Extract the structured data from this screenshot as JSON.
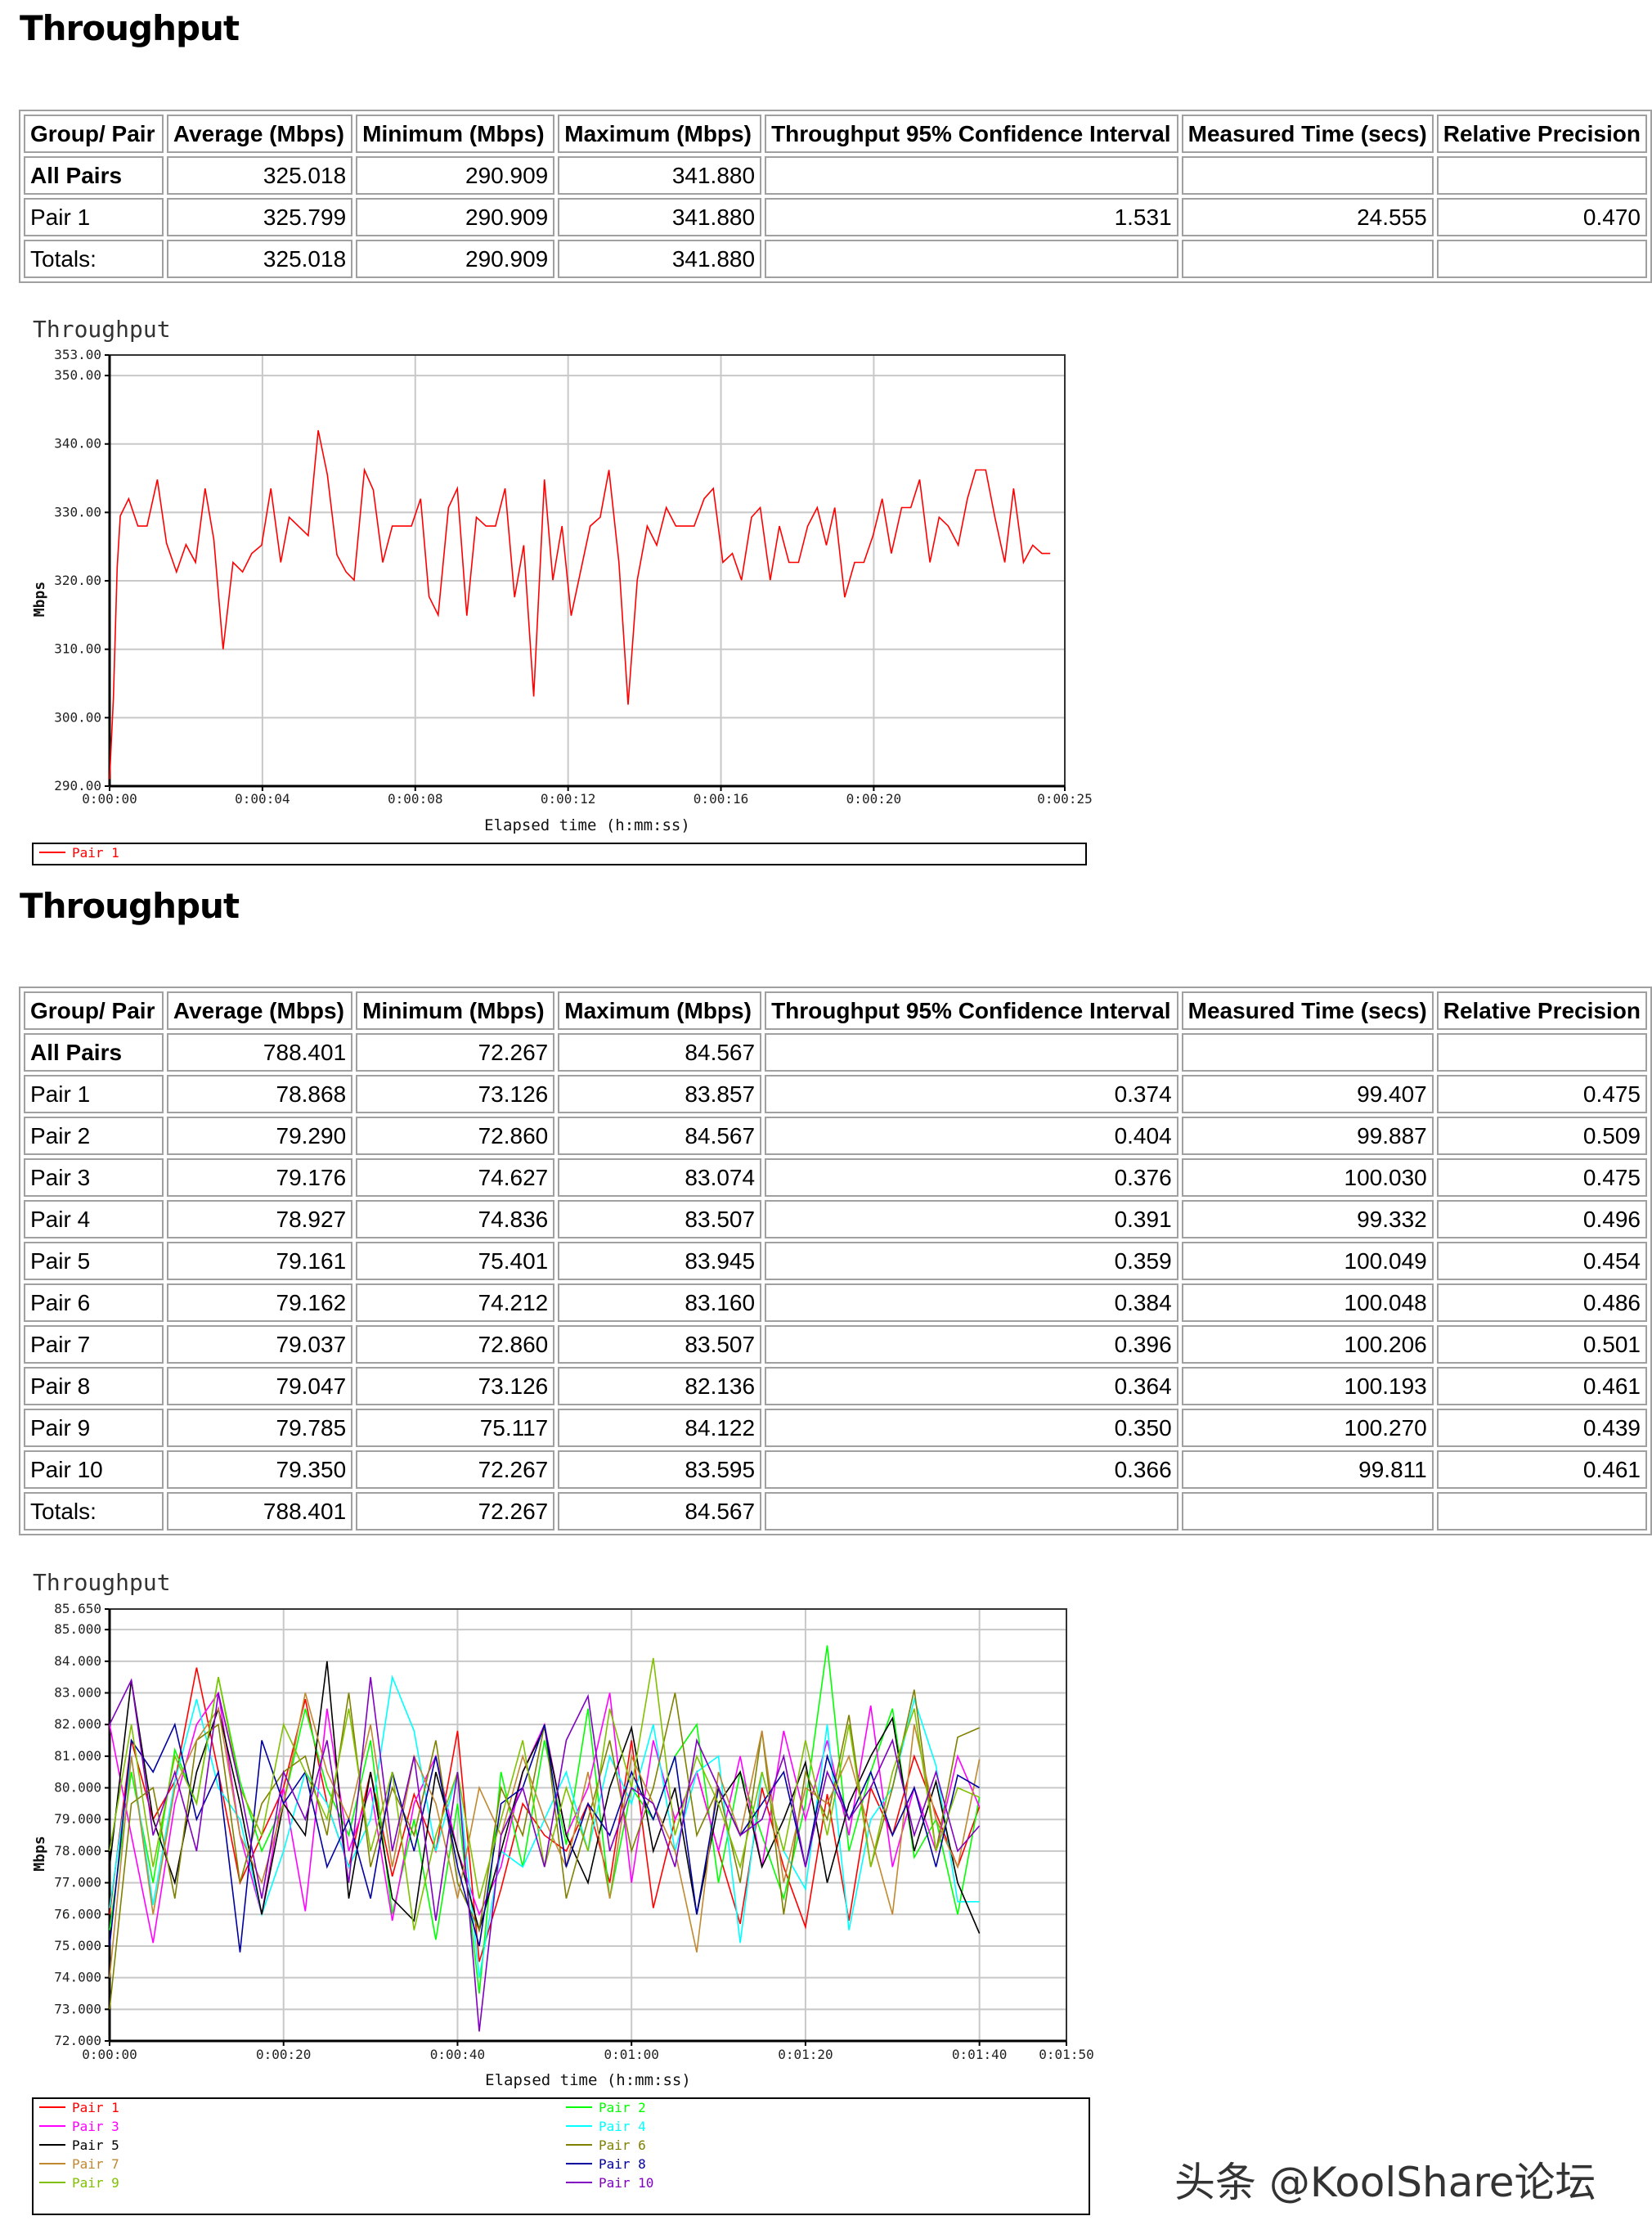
{
  "sections": [
    {
      "title": "Throughput",
      "table": {
        "headers": [
          "Group/ Pair",
          "Average (Mbps)",
          "Minimum (Mbps)",
          "Maximum (Mbps)",
          "Throughput 95% Confidence Interval",
          "Measured Time (secs)",
          "Relative Precision"
        ],
        "rows": [
          [
            "All Pairs",
            "325.018",
            "290.909",
            "341.880",
            "",
            "",
            ""
          ],
          [
            "Pair 1",
            "325.799",
            "290.909",
            "341.880",
            "1.531",
            "24.555",
            "0.470"
          ],
          [
            "Totals:",
            "325.018",
            "290.909",
            "341.880",
            "",
            "",
            ""
          ]
        ]
      }
    },
    {
      "title": "Throughput",
      "table": {
        "headers": [
          "Group/ Pair",
          "Average (Mbps)",
          "Minimum (Mbps)",
          "Maximum (Mbps)",
          "Throughput 95% Confidence Interval",
          "Measured Time (secs)",
          "Relative Precision"
        ],
        "rows": [
          [
            "All Pairs",
            "788.401",
            "72.267",
            "84.567",
            "",
            "",
            ""
          ],
          [
            "Pair 1",
            "78.868",
            "73.126",
            "83.857",
            "0.374",
            "99.407",
            "0.475"
          ],
          [
            "Pair 2",
            "79.290",
            "72.860",
            "84.567",
            "0.404",
            "99.887",
            "0.509"
          ],
          [
            "Pair 3",
            "79.176",
            "74.627",
            "83.074",
            "0.376",
            "100.030",
            "0.475"
          ],
          [
            "Pair 4",
            "78.927",
            "74.836",
            "83.507",
            "0.391",
            "99.332",
            "0.496"
          ],
          [
            "Pair 5",
            "79.161",
            "75.401",
            "83.945",
            "0.359",
            "100.049",
            "0.454"
          ],
          [
            "Pair 6",
            "79.162",
            "74.212",
            "83.160",
            "0.384",
            "100.048",
            "0.486"
          ],
          [
            "Pair 7",
            "79.037",
            "72.860",
            "83.507",
            "0.396",
            "100.206",
            "0.501"
          ],
          [
            "Pair 8",
            "79.047",
            "73.126",
            "82.136",
            "0.364",
            "100.193",
            "0.461"
          ],
          [
            "Pair 9",
            "79.785",
            "75.117",
            "84.122",
            "0.350",
            "100.270",
            "0.439"
          ],
          [
            "Pair 10",
            "79.350",
            "72.267",
            "83.595",
            "0.366",
            "99.811",
            "0.461"
          ],
          [
            "Totals:",
            "788.401",
            "72.267",
            "84.567",
            "",
            "",
            ""
          ]
        ]
      }
    }
  ],
  "chart_data": [
    {
      "type": "line",
      "title": "Throughput",
      "xlabel": "Elapsed time (h:mm:ss)",
      "ylabel": "Mbps",
      "xlim": [
        0,
        25
      ],
      "ylim": [
        290,
        353
      ],
      "grid": true,
      "legend_placement": "bottom",
      "x_ticks": [
        0,
        4,
        8,
        12,
        16,
        20,
        25
      ],
      "x_tick_labels": [
        "0:00:00",
        "0:00:04",
        "0:00:08",
        "0:00:12",
        "0:00:16",
        "0:00:20",
        "0:00:25"
      ],
      "y_ticks": [
        290,
        300,
        310,
        320,
        330,
        340,
        350,
        353
      ],
      "y_tick_labels": [
        "290.00",
        "300.00",
        "310.00",
        "320.00",
        "330.00",
        "340.00",
        "350.00",
        "353.00"
      ],
      "series": [
        {
          "name": "Pair 1",
          "color": "#ff0000",
          "x": [
            0,
            0.1,
            0.2,
            0.28,
            0.5,
            0.74,
            0.98,
            1.25,
            1.49,
            1.75,
            2.0,
            2.25,
            2.5,
            2.73,
            2.97,
            3.23,
            3.48,
            3.72,
            3.98,
            4.22,
            4.48,
            4.7,
            5.2,
            5.46,
            5.7,
            5.95,
            6.19,
            6.4,
            6.67,
            6.9,
            7.15,
            7.4,
            7.9,
            8.14,
            8.36,
            8.6,
            8.87,
            9.1,
            9.35,
            9.6,
            9.85,
            10.1,
            10.35,
            10.6,
            10.84,
            11.1,
            11.38,
            11.6,
            11.84,
            12.08,
            12.58,
            12.84,
            13.07,
            13.33,
            13.57,
            13.81,
            14.07,
            14.32,
            14.57,
            14.82,
            15.3,
            15.56,
            15.8,
            16.05,
            16.3,
            16.54,
            16.8,
            17.03,
            17.29,
            17.53,
            17.78,
            18.03,
            18.27,
            18.52,
            18.76,
            18.98,
            19.24,
            19.5,
            19.74,
            19.98,
            20.22,
            20.46,
            20.73,
            20.97,
            21.2,
            21.47,
            21.71,
            21.95,
            22.21,
            22.45,
            22.67,
            22.93,
            23.17,
            23.43,
            23.66,
            23.92,
            24.16,
            24.4,
            24.62
          ],
          "y": [
            291,
            303,
            322,
            329.5,
            332,
            328,
            328,
            334.8,
            325.5,
            321.3,
            325.3,
            322.7,
            333.5,
            326,
            310,
            322.7,
            321.3,
            324,
            325.2,
            333.5,
            322.7,
            329.3,
            326.6,
            342,
            335.5,
            323.8,
            321.3,
            320.1,
            336.2,
            333.3,
            322.7,
            328,
            328,
            332,
            317.7,
            315,
            330.7,
            333.5,
            314.9,
            329.3,
            328,
            328,
            333.5,
            317.6,
            325.2,
            303.1,
            334.8,
            320.1,
            328,
            314.9,
            328,
            329.3,
            336.2,
            322.7,
            301.9,
            320.1,
            328,
            325.2,
            330.7,
            328,
            328,
            332,
            333.5,
            322.7,
            324,
            320.1,
            329.3,
            330.7,
            320.1,
            328,
            322.7,
            322.7,
            328,
            330.7,
            325.2,
            330.7,
            317.6,
            322.7,
            322.7,
            326.6,
            332,
            324,
            330.7,
            330.7,
            334.8,
            322.7,
            329.3,
            328,
            325.2,
            332,
            336.2,
            336.2,
            329.3,
            322.7,
            333.5,
            322.7,
            325.2,
            324,
            324
          ]
        }
      ]
    },
    {
      "type": "line",
      "title": "Throughput",
      "xlabel": "Elapsed time (h:mm:ss)",
      "ylabel": "Mbps",
      "xlim": [
        0,
        110
      ],
      "ylim": [
        72,
        85.65
      ],
      "grid": true,
      "legend_placement": "bottom",
      "x_ticks": [
        0,
        20,
        40,
        60,
        80,
        100,
        110
      ],
      "x_tick_labels": [
        "0:00:00",
        "0:00:20",
        "0:00:40",
        "0:01:00",
        "0:01:20",
        "0:01:40",
        "0:01:50"
      ],
      "y_ticks": [
        72,
        73,
        74,
        75,
        76,
        77,
        78,
        79,
        80,
        81,
        82,
        83,
        84,
        85,
        85.65
      ],
      "y_tick_labels": [
        "72.000",
        "73.000",
        "74.000",
        "75.000",
        "76.000",
        "77.000",
        "78.000",
        "79.000",
        "80.000",
        "81.000",
        "82.000",
        "83.000",
        "84.000",
        "85.000",
        "85.650"
      ],
      "x": [
        0,
        2.5,
        5,
        7.5,
        10,
        12.5,
        15,
        17.5,
        20,
        22.5,
        25,
        27.5,
        30,
        32.5,
        35,
        37.5,
        40,
        42.5,
        45,
        47.5,
        50,
        52.5,
        55,
        57.5,
        60,
        62.5,
        65,
        67.5,
        70,
        72.5,
        75,
        77.5,
        80,
        82.5,
        85,
        87.5,
        90,
        92.5,
        95,
        97.5,
        100
      ],
      "series": [
        {
          "name": "Pair 1",
          "color": "#ff0000",
          "values": [
            76.0,
            81.5,
            79.0,
            80.2,
            83.8,
            80.5,
            77.0,
            78.5,
            80.0,
            82.8,
            79.5,
            77.5,
            80.5,
            77.2,
            79.8,
            78.0,
            81.8,
            74.5,
            76.8,
            79.5,
            78.5,
            78.0,
            79.5,
            77.0,
            81.5,
            76.2,
            79.0,
            80.5,
            78.0,
            75.7,
            80.0,
            77.5,
            75.6,
            79.8,
            75.8,
            80.0,
            78.5,
            81.0,
            79.2,
            77.5,
            79.4
          ]
        },
        {
          "name": "Pair 2",
          "color": "#00ff00",
          "values": [
            75.5,
            80.5,
            77.0,
            81.2,
            79.5,
            83.5,
            80.2,
            78.0,
            79.5,
            82.5,
            80.0,
            78.5,
            81.5,
            76.0,
            79.0,
            75.2,
            79.5,
            73.5,
            80.5,
            77.5,
            81.5,
            78.2,
            82.5,
            76.5,
            80.0,
            79.0,
            81.0,
            82.0,
            77.0,
            80.5,
            78.5,
            76.5,
            79.5,
            84.5,
            78.0,
            80.5,
            82.5,
            77.8,
            79.0,
            76.0,
            79.7
          ]
        },
        {
          "name": "Pair 3",
          "color": "#ff00ff",
          "values": [
            82.0,
            78.5,
            75.1,
            79.5,
            82.0,
            83.0,
            78.5,
            76.0,
            80.0,
            76.1,
            82.5,
            78.0,
            80.0,
            75.8,
            79.5,
            81.0,
            78.0,
            76.0,
            77.5,
            80.5,
            82.0,
            78.5,
            80.0,
            83.0,
            77.0,
            81.5,
            79.0,
            80.5,
            78.0,
            81.0,
            77.5,
            81.8,
            79.0,
            81.5,
            78.5,
            82.6,
            77.5,
            80.0,
            78.0,
            81.0,
            79.4
          ]
        },
        {
          "name": "Pair 4",
          "color": "#00ffff",
          "values": [
            76.2,
            81.0,
            76.3,
            80.2,
            82.8,
            80.0,
            79.0,
            76.0,
            78.0,
            80.5,
            79.5,
            77.5,
            79.0,
            83.5,
            81.8,
            78.0,
            80.5,
            74.0,
            78.0,
            77.5,
            79.0,
            80.5,
            78.0,
            81.0,
            79.5,
            82.0,
            78.0,
            80.5,
            81.0,
            75.1,
            80.5,
            78.0,
            76.8,
            82.0,
            75.5,
            79.0,
            80.0,
            82.8,
            80.7,
            76.4,
            76.4
          ]
        },
        {
          "name": "Pair 5",
          "color": "#000000",
          "values": [
            77.5,
            83.4,
            79.0,
            77.0,
            80.5,
            82.5,
            79.5,
            76.0,
            79.5,
            78.5,
            84.0,
            76.5,
            80.5,
            76.5,
            75.8,
            80.5,
            78.0,
            75.5,
            78.0,
            80.5,
            81.9,
            78.5,
            77.0,
            80.0,
            81.9,
            78.0,
            80.0,
            76.0,
            79.5,
            80.5,
            77.5,
            79.0,
            80.8,
            77.0,
            79.5,
            81.0,
            82.2,
            78.0,
            80.2,
            77.0,
            75.4
          ]
        },
        {
          "name": "Pair 6",
          "color": "#808000",
          "values": [
            73.0,
            79.5,
            80.0,
            76.5,
            81.5,
            82.0,
            77.0,
            79.5,
            80.5,
            81.0,
            78.5,
            83.0,
            77.5,
            80.0,
            78.5,
            81.5,
            77.0,
            75.5,
            80.0,
            78.5,
            82.0,
            76.5,
            79.0,
            81.5,
            78.0,
            80.0,
            83.0,
            78.5,
            80.0,
            77.0,
            81.8,
            76.0,
            80.5,
            79.0,
            82.3,
            77.5,
            80.0,
            83.1,
            78.0,
            81.6,
            81.9
          ]
        },
        {
          "name": "Pair 7",
          "color": "#c08830",
          "values": [
            74.0,
            81.0,
            76.0,
            80.0,
            81.5,
            82.5,
            78.5,
            77.0,
            79.5,
            83.0,
            80.5,
            79.0,
            82.0,
            77.5,
            81.0,
            79.5,
            76.5,
            80.0,
            78.5,
            81.0,
            79.0,
            77.5,
            80.5,
            76.5,
            81.0,
            79.5,
            78.0,
            74.8,
            80.5,
            78.5,
            81.8,
            77.0,
            80.0,
            79.5,
            81.0,
            78.5,
            76.0,
            82.0,
            79.0,
            77.5,
            80.9
          ]
        },
        {
          "name": "Pair 8",
          "color": "#0000a0",
          "values": [
            75.0,
            81.5,
            80.5,
            82.0,
            79.0,
            80.5,
            74.8,
            81.5,
            79.5,
            80.5,
            77.5,
            79.0,
            76.5,
            80.5,
            78.0,
            81.0,
            77.5,
            75.0,
            79.5,
            80.0,
            82.0,
            77.5,
            79.5,
            78.5,
            80.5,
            79.0,
            81.0,
            76.0,
            80.0,
            78.5,
            79.5,
            80.5,
            77.5,
            81.0,
            79.0,
            80.5,
            78.5,
            80.0,
            77.5,
            80.4,
            80.0
          ]
        },
        {
          "name": "Pair 9",
          "color": "#80c000",
          "values": [
            78.0,
            82.0,
            77.5,
            81.0,
            79.5,
            83.5,
            80.0,
            78.5,
            82.0,
            80.5,
            79.0,
            82.5,
            78.0,
            80.5,
            75.5,
            78.5,
            80.5,
            76.5,
            79.0,
            81.5,
            77.5,
            80.0,
            78.0,
            82.5,
            80.0,
            84.1,
            78.5,
            81.0,
            79.5,
            77.5,
            80.5,
            78.0,
            81.5,
            78.5,
            82.0,
            77.5,
            80.5,
            82.5,
            78.0,
            80.0,
            79.7
          ]
        },
        {
          "name": "Pair 10",
          "color": "#8000c0",
          "values": [
            82.0,
            83.4,
            78.5,
            80.5,
            78.0,
            83.0,
            80.0,
            76.5,
            80.5,
            79.0,
            81.5,
            77.0,
            83.5,
            78.0,
            81.0,
            75.8,
            80.5,
            72.3,
            78.5,
            80.0,
            77.5,
            81.5,
            82.9,
            78.0,
            80.0,
            79.5,
            77.5,
            81.5,
            80.0,
            78.5,
            79.0,
            81.0,
            77.5,
            80.5,
            79.0,
            80.0,
            81.5,
            78.5,
            80.5,
            78.0,
            78.8
          ]
        }
      ]
    }
  ],
  "watermark": "头条 @KoolShare论坛"
}
